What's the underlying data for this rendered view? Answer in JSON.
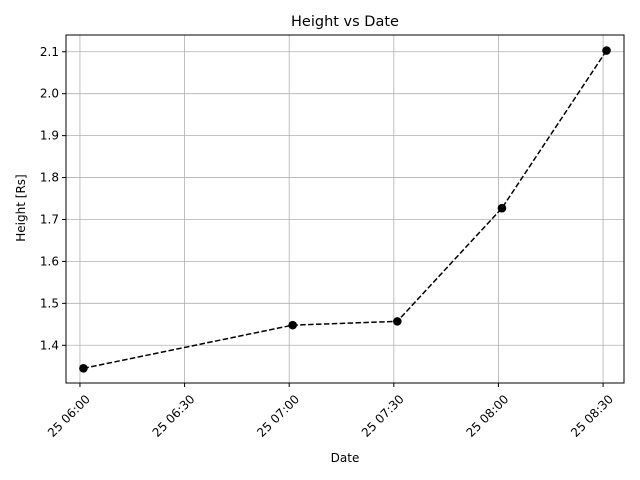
{
  "chart_data": {
    "type": "line",
    "title": "Height vs Date",
    "xlabel": "Date",
    "ylabel": "Height [Rs]",
    "x_tick_labels": [
      "25 06:00",
      "25 06:30",
      "25 07:00",
      "25 07:30",
      "25 08:00",
      "25 08:30"
    ],
    "x_tick_times": [
      "06:00",
      "06:30",
      "07:00",
      "07:30",
      "08:00",
      "08:30"
    ],
    "xlim": [
      "05:56",
      "08:36"
    ],
    "y_ticks": [
      1.4,
      1.5,
      1.6,
      1.7,
      1.8,
      1.9,
      2.0,
      2.1
    ],
    "ylim": [
      1.31,
      2.14
    ],
    "grid": true,
    "series": [
      {
        "x": [
          "06:01",
          "07:01",
          "07:31",
          "08:01",
          "08:31"
        ],
        "y": [
          1.345,
          1.448,
          1.457,
          1.727,
          2.103
        ],
        "style": "dashed",
        "marker": "circle",
        "color": "#000000"
      }
    ]
  }
}
